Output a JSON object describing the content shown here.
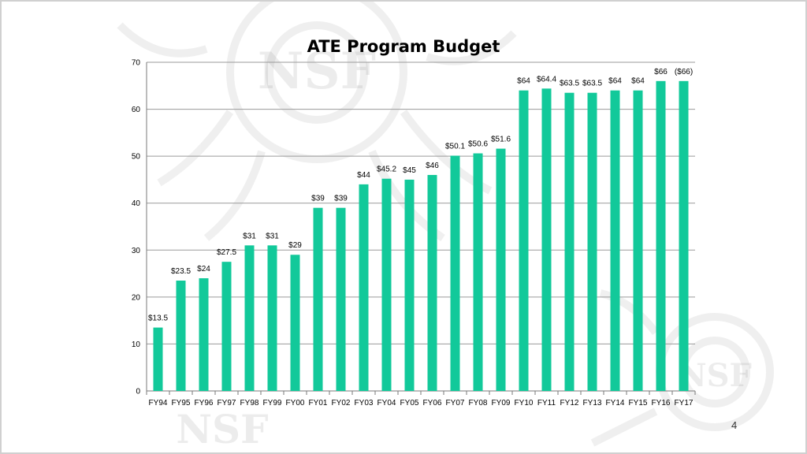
{
  "slide": {
    "page_number": "4",
    "bar_color": "#12c99a",
    "watermark_text": "NSF"
  },
  "chart_data": {
    "type": "bar",
    "title": "ATE Program Budget",
    "xlabel": "",
    "ylabel": "",
    "ylim": [
      0,
      70
    ],
    "yticks": [
      0,
      10,
      20,
      30,
      40,
      50,
      60,
      70
    ],
    "grid": true,
    "categories": [
      "FY94",
      "FY95",
      "FY96",
      "FY97",
      "FY98",
      "FY99",
      "FY00",
      "FY01",
      "FY02",
      "FY03",
      "FY04",
      "FY05",
      "FY06",
      "FY07",
      "FY08",
      "FY09",
      "FY10",
      "FY11",
      "FY12",
      "FY13",
      "FY14",
      "FY15",
      "FY16",
      "FY17"
    ],
    "values": [
      13.5,
      23.5,
      24,
      27.5,
      31,
      31,
      29,
      39,
      39,
      44,
      45.2,
      45,
      46,
      50.1,
      50.6,
      51.6,
      64,
      64.4,
      63.5,
      63.5,
      64,
      64,
      66,
      66
    ],
    "data_labels": [
      "$13.5",
      "$23.5",
      "$24",
      "$27.5",
      "$31",
      "$31",
      "$29",
      "$39",
      "$39",
      "$44",
      "$45.2",
      "$45",
      "$46",
      "$50.1",
      "$50.6",
      "$51.6",
      "$64",
      "$64.4",
      "$63.5",
      "$63.5",
      "$64",
      "$64",
      "$66",
      "($66)"
    ]
  }
}
